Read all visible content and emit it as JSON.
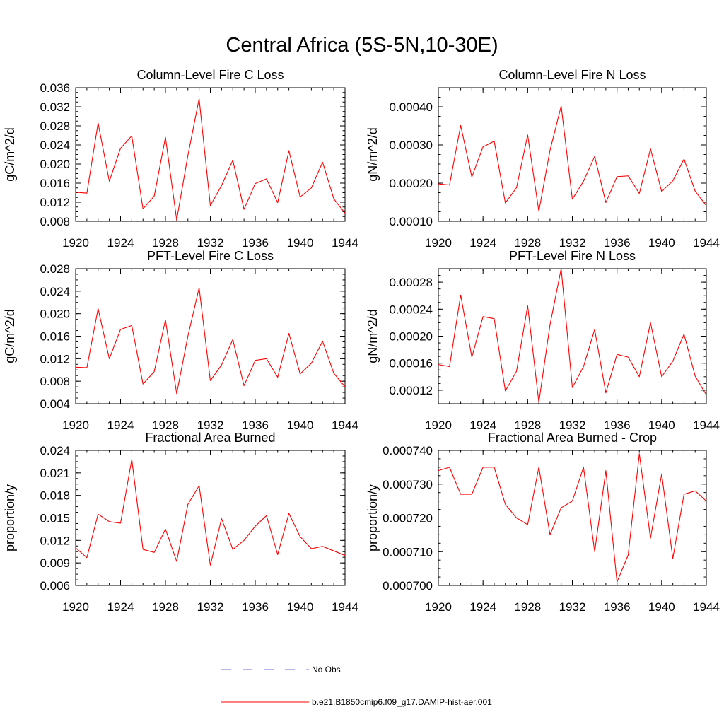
{
  "figure": {
    "title": "Central Africa (5S-5N,10-30E)",
    "series_color": "#ff0000",
    "obs_color": "#6b6bd6"
  },
  "legend": [
    {
      "label": "No Obs",
      "style": "dashed",
      "color": "#6b6bd6"
    },
    {
      "label": "b.e21.B1850cmip6.f09_g17.DAMIP-hist-aer.001",
      "style": "solid",
      "color": "#ff0000"
    }
  ],
  "chart_data": [
    {
      "type": "line",
      "title": "Column-Level Fire C Loss",
      "ylabel": "gC/m^2/d",
      "xlim": [
        1920,
        1944
      ],
      "ylim": [
        0.008,
        0.036
      ],
      "xticks": [
        "1920",
        "1924",
        "1928",
        "1932",
        "1936",
        "1940",
        "1944"
      ],
      "yticks": [
        "0.008",
        "0.012",
        "0.016",
        "0.020",
        "0.024",
        "0.028",
        "0.032",
        "0.036"
      ],
      "x": [
        1920,
        1921,
        1922,
        1923,
        1924,
        1925,
        1926,
        1927,
        1928,
        1929,
        1930,
        1931,
        1932,
        1933,
        1934,
        1935,
        1936,
        1937,
        1938,
        1939,
        1940,
        1941,
        1942,
        1943,
        1944
      ],
      "series": [
        {
          "values": [
            0.0141,
            0.0139,
            0.0286,
            0.0164,
            0.0233,
            0.0259,
            0.0106,
            0.0133,
            0.0256,
            0.0083,
            0.0218,
            0.0337,
            0.0113,
            0.0155,
            0.0208,
            0.0105,
            0.0159,
            0.0169,
            0.0119,
            0.0228,
            0.0131,
            0.015,
            0.0204,
            0.0127,
            0.0097
          ]
        }
      ]
    },
    {
      "type": "line",
      "title": "Column-Level Fire N Loss",
      "ylabel": "gN/m^2/d",
      "xlim": [
        1920,
        1944
      ],
      "ylim": [
        0.0001,
        0.00045
      ],
      "xticks": [
        "1920",
        "1924",
        "1928",
        "1932",
        "1936",
        "1940",
        "1944"
      ],
      "yticks": [
        "0.00010",
        "0.00020",
        "0.00030",
        "0.00040"
      ],
      "x": [
        1920,
        1921,
        1922,
        1923,
        1924,
        1925,
        1926,
        1927,
        1928,
        1929,
        1930,
        1931,
        1932,
        1933,
        1934,
        1935,
        1936,
        1937,
        1938,
        1939,
        1940,
        1941,
        1942,
        1943,
        1944
      ],
      "series": [
        {
          "values": [
            0.000198,
            0.000195,
            0.000351,
            0.000216,
            0.000295,
            0.00031,
            0.000148,
            0.000188,
            0.000326,
            0.000126,
            0.000286,
            0.000402,
            0.000158,
            0.000205,
            0.00027,
            0.000149,
            0.000217,
            0.000219,
            0.000173,
            0.00029,
            0.000178,
            0.000206,
            0.000263,
            0.000179,
            0.000141
          ]
        }
      ]
    },
    {
      "type": "line",
      "title": "PFT-Level Fire C Loss",
      "ylabel": "gC/m^2/d",
      "xlim": [
        1920,
        1944
      ],
      "ylim": [
        0.004,
        0.028
      ],
      "xticks": [
        "1920",
        "1924",
        "1928",
        "1932",
        "1936",
        "1940",
        "1944"
      ],
      "yticks": [
        "0.004",
        "0.008",
        "0.012",
        "0.016",
        "0.020",
        "0.024",
        "0.028"
      ],
      "x": [
        1920,
        1921,
        1922,
        1923,
        1924,
        1925,
        1926,
        1927,
        1928,
        1929,
        1930,
        1931,
        1932,
        1933,
        1934,
        1935,
        1936,
        1937,
        1938,
        1939,
        1940,
        1941,
        1942,
        1943,
        1944
      ],
      "series": [
        {
          "values": [
            0.0105,
            0.0104,
            0.0209,
            0.012,
            0.0172,
            0.0179,
            0.0075,
            0.0097,
            0.0189,
            0.0058,
            0.016,
            0.0246,
            0.0081,
            0.0109,
            0.0154,
            0.0072,
            0.0117,
            0.012,
            0.0087,
            0.0165,
            0.0093,
            0.0112,
            0.0151,
            0.0094,
            0.007
          ]
        }
      ]
    },
    {
      "type": "line",
      "title": "PFT-Level Fire N Loss",
      "ylabel": "gN/m^2/d",
      "xlim": [
        1920,
        1944
      ],
      "ylim": [
        0.0001,
        0.0003
      ],
      "xticks": [
        "1920",
        "1924",
        "1928",
        "1932",
        "1936",
        "1940",
        "1944"
      ],
      "yticks": [
        "0.00012",
        "0.00016",
        "0.00020",
        "0.00024",
        "0.00028"
      ],
      "x": [
        1920,
        1921,
        1922,
        1923,
        1924,
        1925,
        1926,
        1927,
        1928,
        1929,
        1930,
        1931,
        1932,
        1933,
        1934,
        1935,
        1936,
        1937,
        1938,
        1939,
        1940,
        1941,
        1942,
        1943,
        1944
      ],
      "series": [
        {
          "values": [
            0.000158,
            0.000155,
            0.000261,
            0.000169,
            0.000229,
            0.000226,
            0.000119,
            0.000148,
            0.000245,
            0.000102,
            0.000217,
            0.0003,
            0.000124,
            0.000155,
            0.00021,
            0.000116,
            0.000173,
            0.000169,
            0.00014,
            0.00022,
            0.00014,
            0.000163,
            0.000203,
            0.000141,
            0.000113
          ]
        }
      ]
    },
    {
      "type": "line",
      "title": "Fractional Area Burned",
      "ylabel": "proportion/y",
      "xlim": [
        1920,
        1944
      ],
      "ylim": [
        0.006,
        0.024
      ],
      "xticks": [
        "1920",
        "1924",
        "1928",
        "1932",
        "1936",
        "1940",
        "1944"
      ],
      "yticks": [
        "0.006",
        "0.009",
        "0.012",
        "0.015",
        "0.018",
        "0.021",
        "0.024"
      ],
      "x": [
        1920,
        1921,
        1922,
        1923,
        1924,
        1925,
        1926,
        1927,
        1928,
        1929,
        1930,
        1931,
        1932,
        1933,
        1934,
        1935,
        1936,
        1937,
        1938,
        1939,
        1940,
        1941,
        1942,
        1943,
        1944
      ],
      "series": [
        {
          "values": [
            0.011,
            0.0097,
            0.0155,
            0.0145,
            0.0143,
            0.0228,
            0.0108,
            0.0104,
            0.0135,
            0.0092,
            0.0168,
            0.0193,
            0.0087,
            0.0149,
            0.0108,
            0.012,
            0.0139,
            0.0153,
            0.0101,
            0.0156,
            0.0125,
            0.0109,
            0.0112,
            0.0106,
            0.01
          ]
        }
      ]
    },
    {
      "type": "line",
      "title": "Fractional Area Burned - Crop",
      "ylabel": "proportion/y",
      "xlim": [
        1920,
        1944
      ],
      "ylim": [
        0.0007,
        0.00074
      ],
      "xticks": [
        "1920",
        "1924",
        "1928",
        "1932",
        "1936",
        "1940",
        "1944"
      ],
      "yticks": [
        "0.000700",
        "0.000710",
        "0.000720",
        "0.000730",
        "0.000740"
      ],
      "x": [
        1920,
        1921,
        1922,
        1923,
        1924,
        1925,
        1926,
        1927,
        1928,
        1929,
        1930,
        1931,
        1932,
        1933,
        1934,
        1935,
        1936,
        1937,
        1938,
        1939,
        1940,
        1941,
        1942,
        1943,
        1944
      ],
      "series": [
        {
          "values": [
            0.000734,
            0.000735,
            0.000727,
            0.000727,
            0.000735,
            0.000735,
            0.000724,
            0.00072,
            0.000718,
            0.000735,
            0.000715,
            0.000723,
            0.000725,
            0.000735,
            0.00071,
            0.000734,
            0.000701,
            0.000709,
            0.000739,
            0.000714,
            0.000733,
            0.000708,
            0.000727,
            0.000728,
            0.000725
          ]
        }
      ]
    }
  ]
}
